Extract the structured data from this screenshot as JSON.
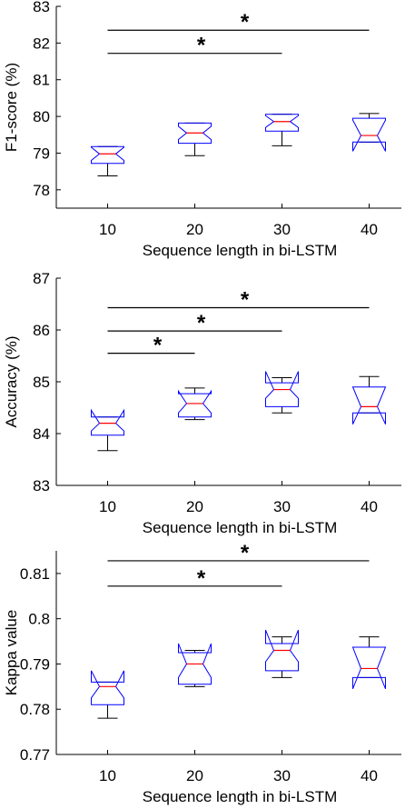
{
  "chart_data": [
    {
      "type": "box",
      "notched": true,
      "xlabel": "Sequence length in bi-LSTM",
      "ylabel": "F1-score (%)",
      "categories": [
        "10",
        "20",
        "30",
        "40"
      ],
      "ylim": [
        77.5,
        83
      ],
      "yticks": [
        "78",
        "79",
        "80",
        "81",
        "82",
        "83"
      ],
      "box_color": "#0000ff",
      "median_color": "#ff0000",
      "whisker_color": "#000000",
      "boxes": [
        {
          "whisker_low": 78.38,
          "q1": 78.72,
          "median": 78.98,
          "q3": 79.18,
          "whisker_high": 79.18,
          "notch_low": 78.8,
          "notch_high": 79.16
        },
        {
          "whisker_low": 78.93,
          "q1": 79.27,
          "median": 79.55,
          "q3": 79.82,
          "whisker_high": 79.82,
          "notch_low": 79.37,
          "notch_high": 79.73
        },
        {
          "whisker_low": 79.2,
          "q1": 79.6,
          "median": 79.86,
          "q3": 80.06,
          "whisker_high": 80.06,
          "notch_low": 79.7,
          "notch_high": 80.02
        },
        {
          "whisker_low": 79.3,
          "q1": 79.3,
          "median": 79.48,
          "q3": 79.95,
          "whisker_high": 80.08,
          "notch_low": 79.05,
          "notch_high": 79.9
        }
      ],
      "significance": [
        {
          "from": "10",
          "to": "30",
          "y": 81.72,
          "label": "*"
        },
        {
          "from": "10",
          "to": "40",
          "y": 82.35,
          "label": "*"
        }
      ]
    },
    {
      "type": "box",
      "notched": true,
      "xlabel": "Sequence length in bi-LSTM",
      "ylabel": "Accuracy (%)",
      "categories": [
        "10",
        "20",
        "30",
        "40"
      ],
      "ylim": [
        83,
        87
      ],
      "yticks": [
        "83",
        "84",
        "85",
        "86",
        "87"
      ],
      "box_color": "#0000ff",
      "median_color": "#ff0000",
      "whisker_color": "#000000",
      "boxes": [
        {
          "whisker_low": 83.67,
          "q1": 83.97,
          "median": 84.2,
          "q3": 84.32,
          "whisker_high": 84.32,
          "notch_low": 84.05,
          "notch_high": 84.45
        },
        {
          "whisker_low": 84.27,
          "q1": 84.32,
          "median": 84.58,
          "q3": 84.77,
          "whisker_high": 84.88,
          "notch_low": 84.4,
          "notch_high": 84.82
        },
        {
          "whisker_low": 84.4,
          "q1": 84.52,
          "median": 84.85,
          "q3": 84.98,
          "whisker_high": 85.08,
          "notch_low": 84.68,
          "notch_high": 85.2
        },
        {
          "whisker_low": 84.4,
          "q1": 84.4,
          "median": 84.52,
          "q3": 84.9,
          "whisker_high": 85.1,
          "notch_low": 84.18,
          "notch_high": 84.9
        }
      ],
      "significance": [
        {
          "from": "10",
          "to": "20",
          "y": 85.55,
          "label": "*"
        },
        {
          "from": "10",
          "to": "30",
          "y": 85.98,
          "label": "*"
        },
        {
          "from": "10",
          "to": "40",
          "y": 86.43,
          "label": "*"
        }
      ]
    },
    {
      "type": "box",
      "notched": true,
      "xlabel": "Sequence length in bi-LSTM",
      "ylabel": "Kappa value",
      "categories": [
        "10",
        "20",
        "30",
        "40"
      ],
      "ylim": [
        0.77,
        0.815
      ],
      "yticks": [
        "0.77",
        "0.78",
        "0.79",
        "0.8",
        "0.81"
      ],
      "box_color": "#0000ff",
      "median_color": "#ff0000",
      "whisker_color": "#000000",
      "boxes": [
        {
          "whisker_low": 0.778,
          "q1": 0.781,
          "median": 0.785,
          "q3": 0.786,
          "whisker_high": 0.786,
          "notch_low": 0.7825,
          "notch_high": 0.7885
        },
        {
          "whisker_low": 0.785,
          "q1": 0.7855,
          "median": 0.79,
          "q3": 0.7925,
          "whisker_high": 0.793,
          "notch_low": 0.787,
          "notch_high": 0.7945
        },
        {
          "whisker_low": 0.787,
          "q1": 0.7885,
          "median": 0.793,
          "q3": 0.7945,
          "whisker_high": 0.796,
          "notch_low": 0.7905,
          "notch_high": 0.7975
        },
        {
          "whisker_low": 0.787,
          "q1": 0.787,
          "median": 0.789,
          "q3": 0.7937,
          "whisker_high": 0.796,
          "notch_low": 0.7845,
          "notch_high": 0.7937
        }
      ],
      "significance": [
        {
          "from": "10",
          "to": "30",
          "y": 0.8072,
          "label": "*"
        },
        {
          "from": "10",
          "to": "40",
          "y": 0.8128,
          "label": "*"
        }
      ]
    }
  ]
}
